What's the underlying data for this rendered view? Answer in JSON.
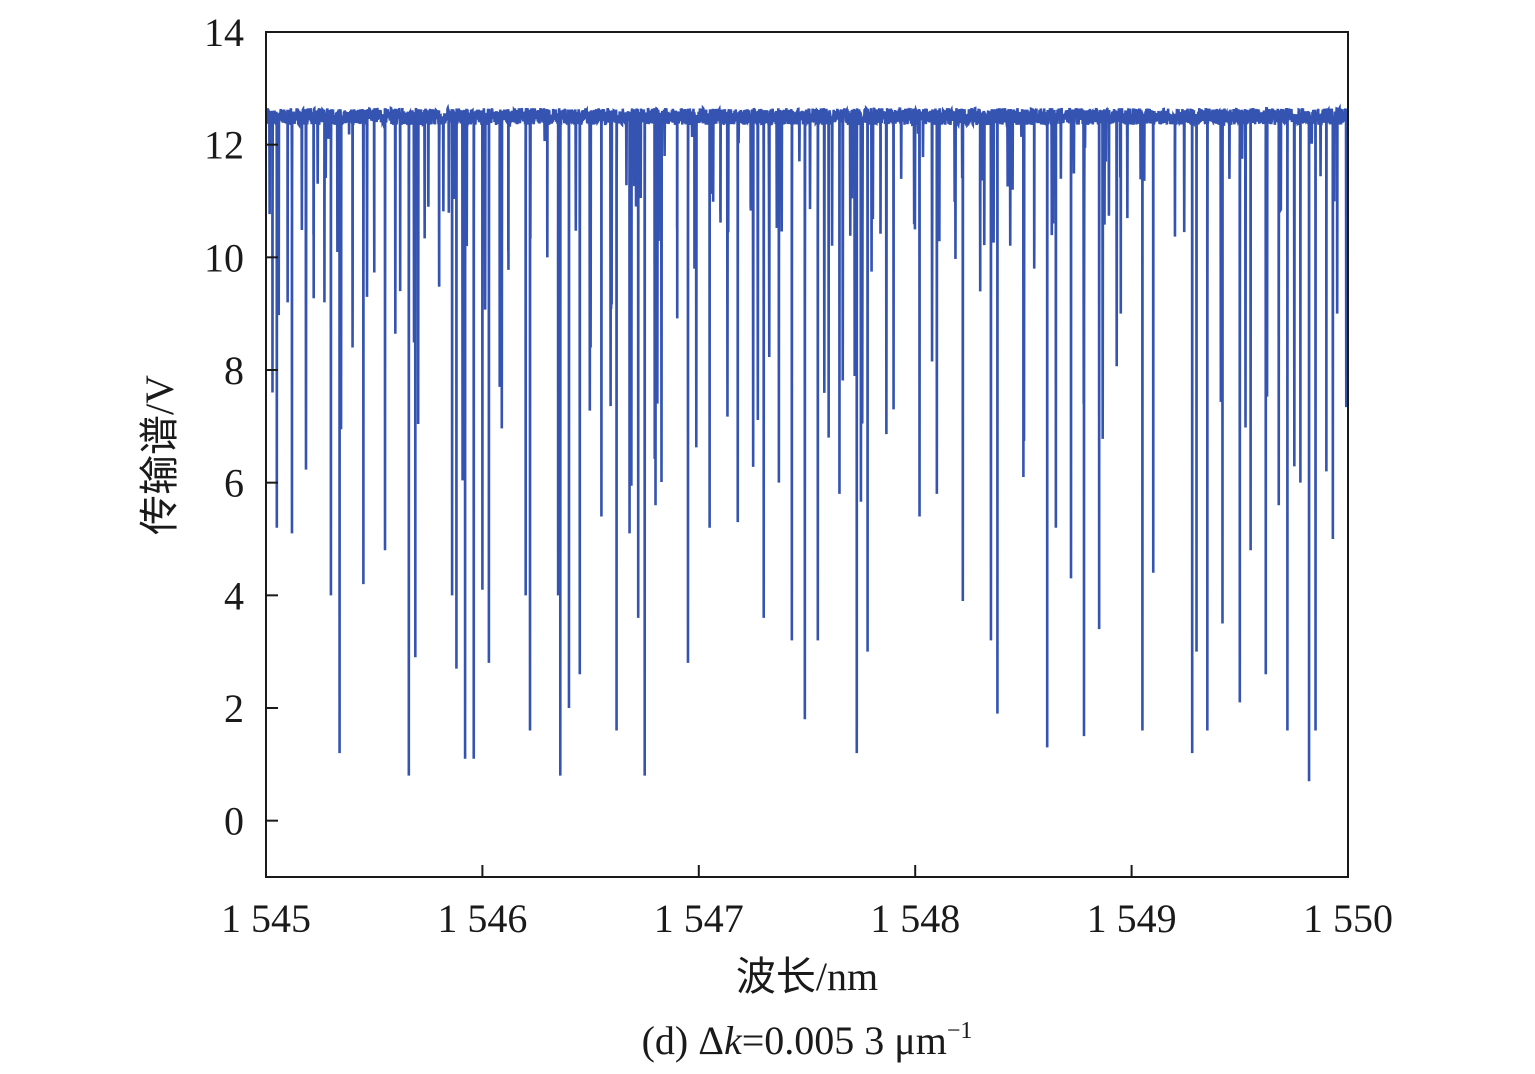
{
  "chart_data": {
    "type": "line",
    "xlabel": "波长/nm",
    "ylabel": "传输谱/V",
    "caption": {
      "prefix": "(d) Δ",
      "var": "k",
      "value": "=0.005 3 μm",
      "sup": "−1"
    },
    "xlim": [
      1545,
      1550
    ],
    "ylim": [
      -1,
      14
    ],
    "xticks": [
      1545,
      1546,
      1547,
      1548,
      1549,
      1550
    ],
    "xtick_labels": [
      "1 545",
      "1 546",
      "1 547",
      "1 548",
      "1 549",
      "1 550"
    ],
    "yticks": [
      0,
      2,
      4,
      6,
      8,
      10,
      12,
      14
    ],
    "ytick_labels": [
      "0",
      "2",
      "4",
      "6",
      "8",
      "10",
      "12",
      "14"
    ],
    "grid": false,
    "line_color": "#3553b0",
    "baseline": 12.5,
    "series": [
      {
        "values": [
          [
            1545.03,
            7.6
          ],
          [
            1545.05,
            5.2
          ],
          [
            1545.1,
            9.2
          ],
          [
            1545.12,
            5.1
          ],
          [
            1545.22,
            11.6
          ],
          [
            1545.27,
            9.2
          ],
          [
            1545.3,
            4.0
          ],
          [
            1545.34,
            1.2
          ],
          [
            1545.4,
            8.4
          ],
          [
            1545.45,
            4.2
          ],
          [
            1545.5,
            10.6
          ],
          [
            1545.55,
            4.8
          ],
          [
            1545.62,
            9.4
          ],
          [
            1545.66,
            0.8
          ],
          [
            1545.69,
            2.9
          ],
          [
            1545.75,
            11.0
          ],
          [
            1545.8,
            9.5
          ],
          [
            1545.86,
            4.0
          ],
          [
            1545.88,
            2.7
          ],
          [
            1545.92,
            1.1
          ],
          [
            1545.96,
            1.1
          ],
          [
            1546.0,
            4.1
          ],
          [
            1546.03,
            2.8
          ],
          [
            1546.08,
            7.7
          ],
          [
            1546.12,
            10.4
          ],
          [
            1546.2,
            4.0
          ],
          [
            1546.22,
            1.6
          ],
          [
            1546.3,
            10.0
          ],
          [
            1546.35,
            4.0
          ],
          [
            1546.36,
            0.8
          ],
          [
            1546.4,
            2.0
          ],
          [
            1546.45,
            2.6
          ],
          [
            1546.5,
            8.4
          ],
          [
            1546.55,
            5.4
          ],
          [
            1546.62,
            1.6
          ],
          [
            1546.68,
            5.1
          ],
          [
            1546.72,
            3.6
          ],
          [
            1546.75,
            0.8
          ],
          [
            1546.8,
            5.6
          ],
          [
            1546.9,
            11.6
          ],
          [
            1546.95,
            2.8
          ],
          [
            1546.98,
            9.8
          ],
          [
            1547.05,
            5.2
          ],
          [
            1547.1,
            10.8
          ],
          [
            1547.18,
            5.3
          ],
          [
            1547.24,
            12.3
          ],
          [
            1547.3,
            3.6
          ],
          [
            1547.37,
            6.0
          ],
          [
            1547.43,
            3.2
          ],
          [
            1547.49,
            1.8
          ],
          [
            1547.55,
            3.2
          ],
          [
            1547.6,
            6.8
          ],
          [
            1547.65,
            5.8
          ],
          [
            1547.73,
            1.2
          ],
          [
            1547.78,
            3.0
          ],
          [
            1547.84,
            11.0
          ],
          [
            1547.9,
            7.3
          ],
          [
            1548.02,
            5.4
          ],
          [
            1548.1,
            5.8
          ],
          [
            1548.22,
            3.9
          ],
          [
            1548.3,
            10.6
          ],
          [
            1548.35,
            3.2
          ],
          [
            1548.38,
            1.9
          ],
          [
            1548.45,
            11.2
          ],
          [
            1548.5,
            6.1
          ],
          [
            1548.55,
            9.8
          ],
          [
            1548.61,
            1.3
          ],
          [
            1548.65,
            5.2
          ],
          [
            1548.72,
            4.3
          ],
          [
            1548.78,
            1.5
          ],
          [
            1548.85,
            3.4
          ],
          [
            1548.95,
            9.0
          ],
          [
            1549.05,
            1.6
          ],
          [
            1549.1,
            4.4
          ],
          [
            1549.2,
            11.0
          ],
          [
            1549.28,
            1.2
          ],
          [
            1549.3,
            3.0
          ],
          [
            1549.35,
            1.6
          ],
          [
            1549.42,
            3.5
          ],
          [
            1549.5,
            2.1
          ],
          [
            1549.55,
            4.8
          ],
          [
            1549.62,
            2.6
          ],
          [
            1549.68,
            5.6
          ],
          [
            1549.72,
            1.6
          ],
          [
            1549.78,
            6.0
          ],
          [
            1549.82,
            0.7
          ],
          [
            1549.85,
            1.6
          ],
          [
            1549.9,
            6.2
          ],
          [
            1549.93,
            5.0
          ],
          [
            1549.95,
            9.0
          ]
        ]
      }
    ]
  }
}
